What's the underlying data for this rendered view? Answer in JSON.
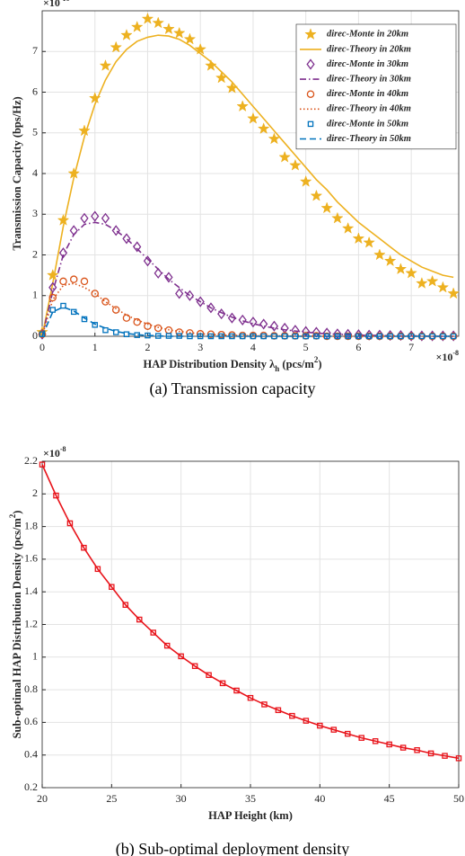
{
  "chart_data": [
    {
      "type": "line",
      "caption": "(a) Transmission capacity",
      "xlabel": [
        {
          "text": "HAP Distribution Density λ"
        },
        {
          "text": "h",
          "shift": "sub"
        },
        {
          "text": "  (pcs/m"
        },
        {
          "text": "2",
          "shift": "sup"
        },
        {
          "text": ")"
        }
      ],
      "ylabel": [
        {
          "text": "Transmission Capacity   (bps/Hz)"
        }
      ],
      "x_multiplier": {
        "base": "×10",
        "power": "-8"
      },
      "y_multiplier": {
        "base": "×10",
        "power": "-10"
      },
      "xlim": [
        0,
        7.9
      ],
      "xticks": [
        0,
        1,
        2,
        3,
        4,
        5,
        6,
        7
      ],
      "ylim": [
        0,
        8
      ],
      "yticks": [
        0,
        1,
        2,
        3,
        4,
        5,
        6,
        7
      ],
      "grid": true,
      "legend": "upper right",
      "x": [
        0,
        0.2,
        0.4,
        0.6,
        0.8,
        1.0,
        1.2,
        1.4,
        1.6,
        1.8,
        2.0,
        2.2,
        2.4,
        2.6,
        2.8,
        3.0,
        3.2,
        3.4,
        3.6,
        3.8,
        4.0,
        4.2,
        4.4,
        4.6,
        4.8,
        5.0,
        5.2,
        5.4,
        5.6,
        5.8,
        6.0,
        6.2,
        6.4,
        6.6,
        6.8,
        7.0,
        7.2,
        7.4,
        7.6,
        7.8
      ],
      "series": [
        {
          "name": "direc-Monte in 20km",
          "color": "#EDB120",
          "marker": "star",
          "line": "none",
          "values": [
            0.1,
            1.5,
            2.85,
            4.0,
            5.05,
            5.85,
            6.65,
            7.1,
            7.4,
            7.6,
            7.8,
            7.7,
            7.55,
            7.45,
            7.3,
            7.05,
            6.65,
            6.35,
            6.1,
            5.65,
            5.35,
            5.1,
            4.85,
            4.4,
            4.2,
            3.8,
            3.45,
            3.15,
            2.9,
            2.65,
            2.4,
            2.3,
            2.0,
            1.85,
            1.65,
            1.55,
            1.3,
            1.35,
            1.2,
            1.05
          ]
        },
        {
          "name": "direc-Theory in 20km",
          "color": "#EDB120",
          "marker": "none",
          "line": "solid",
          "values": [
            0,
            1.3,
            2.7,
            3.9,
            4.9,
            5.7,
            6.3,
            6.75,
            7.05,
            7.25,
            7.35,
            7.4,
            7.38,
            7.3,
            7.15,
            6.95,
            6.75,
            6.5,
            6.25,
            5.95,
            5.65,
            5.35,
            5.05,
            4.75,
            4.45,
            4.15,
            3.85,
            3.6,
            3.3,
            3.05,
            2.8,
            2.6,
            2.4,
            2.2,
            2.0,
            1.85,
            1.7,
            1.6,
            1.5,
            1.45
          ]
        },
        {
          "name": "direc-Monte in 30km",
          "color": "#7E2F8E",
          "marker": "diamond",
          "line": "none",
          "values": [
            0.05,
            1.2,
            2.05,
            2.6,
            2.9,
            2.95,
            2.9,
            2.6,
            2.4,
            2.2,
            1.85,
            1.55,
            1.45,
            1.05,
            1.0,
            0.85,
            0.7,
            0.55,
            0.45,
            0.4,
            0.35,
            0.3,
            0.25,
            0.2,
            0.15,
            0.12,
            0.1,
            0.08,
            0.06,
            0.05,
            0.04,
            0.03,
            0.03,
            0.02,
            0.02,
            0.01,
            0.01,
            0.01,
            0.01,
            0.01
          ]
        },
        {
          "name": "direc-Theory in 30km",
          "color": "#7E2F8E",
          "marker": "none",
          "line": "dashdot",
          "values": [
            0,
            1.1,
            2.0,
            2.5,
            2.75,
            2.8,
            2.75,
            2.6,
            2.4,
            2.15,
            1.9,
            1.65,
            1.4,
            1.2,
            1.0,
            0.85,
            0.7,
            0.58,
            0.47,
            0.38,
            0.31,
            0.25,
            0.2,
            0.16,
            0.13,
            0.1,
            0.08,
            0.06,
            0.05,
            0.04,
            0.03,
            0.02,
            0.02,
            0.01,
            0.01,
            0.01,
            0.01,
            0,
            0,
            0
          ]
        },
        {
          "name": "direc-Monte in 40km",
          "color": "#D95319",
          "marker": "circle",
          "line": "none",
          "values": [
            0.05,
            0.95,
            1.35,
            1.4,
            1.35,
            1.05,
            0.85,
            0.65,
            0.45,
            0.35,
            0.25,
            0.2,
            0.15,
            0.1,
            0.08,
            0.06,
            0.05,
            0.04,
            0.03,
            0.02,
            0.02,
            0.02,
            0.01,
            0.01,
            0.01,
            0.01,
            0.01,
            0,
            0,
            0,
            0,
            0,
            0,
            0,
            0,
            0,
            0,
            0,
            0,
            0
          ]
        },
        {
          "name": "direc-Theory in 40km",
          "color": "#D95319",
          "marker": "none",
          "line": "dotted",
          "values": [
            0,
            0.9,
            1.25,
            1.3,
            1.2,
            1.05,
            0.85,
            0.68,
            0.52,
            0.4,
            0.3,
            0.22,
            0.16,
            0.12,
            0.09,
            0.06,
            0.05,
            0.03,
            0.02,
            0.02,
            0.01,
            0.01,
            0.01,
            0.01,
            0,
            0,
            0,
            0,
            0,
            0,
            0,
            0,
            0,
            0,
            0,
            0,
            0,
            0,
            0,
            0
          ]
        },
        {
          "name": "direc-Monte in 50km",
          "color": "#0072BD",
          "marker": "square",
          "line": "none",
          "values": [
            0.05,
            0.65,
            0.75,
            0.6,
            0.42,
            0.28,
            0.15,
            0.1,
            0.05,
            0.03,
            0.02,
            0.01,
            0.01,
            0.01,
            0,
            0,
            0,
            0,
            0,
            0,
            0,
            0,
            0,
            0,
            0,
            0,
            0,
            0,
            0,
            0,
            0,
            0,
            0,
            0,
            0,
            0,
            0,
            0,
            0,
            0
          ]
        },
        {
          "name": "direc-Theory in 50km",
          "color": "#0072BD",
          "marker": "none",
          "line": "dashed",
          "values": [
            0,
            0.6,
            0.72,
            0.62,
            0.45,
            0.3,
            0.2,
            0.12,
            0.07,
            0.04,
            0.02,
            0.01,
            0,
            0,
            0,
            0,
            0,
            0,
            0,
            0,
            0,
            0,
            0,
            0,
            0,
            0,
            0,
            0,
            0,
            0,
            0,
            0,
            0,
            0,
            0,
            0,
            0,
            0,
            0,
            0
          ]
        }
      ]
    },
    {
      "type": "line",
      "caption": "(b) Sub-optimal deployment density",
      "xlabel": [
        {
          "text": "HAP Height (km)"
        }
      ],
      "ylabel": [
        {
          "text": "Sub-optimal HAP Distribution Density (pcs/m"
        },
        {
          "text": "2",
          "shift": "sup"
        },
        {
          "text": ")"
        }
      ],
      "y_multiplier": {
        "base": "×10",
        "power": "-8"
      },
      "xlim": [
        20,
        50
      ],
      "xticks": [
        20,
        25,
        30,
        35,
        40,
        45,
        50
      ],
      "ylim": [
        0.2,
        2.2
      ],
      "yticks": [
        0.2,
        0.4,
        0.6,
        0.8,
        1,
        1.2,
        1.4,
        1.6,
        1.8,
        2,
        2.2
      ],
      "grid": true,
      "x": [
        20,
        21,
        22,
        23,
        24,
        25,
        26,
        27,
        28,
        29,
        30,
        31,
        32,
        33,
        34,
        35,
        36,
        37,
        38,
        39,
        40,
        41,
        42,
        43,
        44,
        45,
        46,
        47,
        48,
        49,
        50
      ],
      "series": [
        {
          "color": "#E8141B",
          "marker": "square",
          "line": "solid",
          "values": [
            2.18,
            1.99,
            1.82,
            1.67,
            1.54,
            1.43,
            1.32,
            1.23,
            1.15,
            1.07,
            1.005,
            0.945,
            0.89,
            0.84,
            0.795,
            0.75,
            0.71,
            0.675,
            0.64,
            0.61,
            0.58,
            0.555,
            0.53,
            0.505,
            0.485,
            0.465,
            0.445,
            0.43,
            0.41,
            0.395,
            0.38
          ]
        }
      ]
    }
  ]
}
